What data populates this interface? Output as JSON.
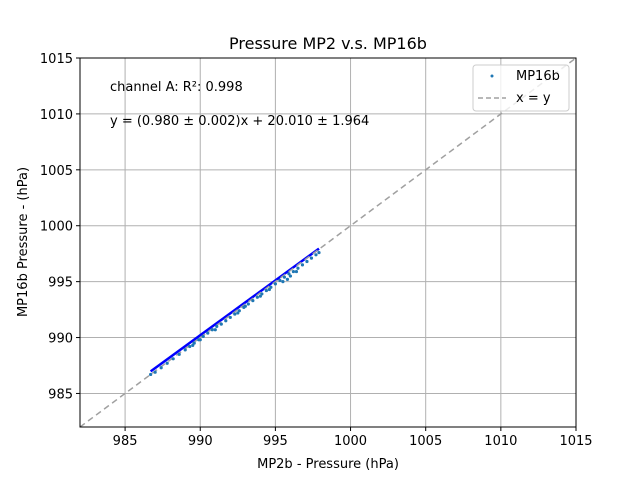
{
  "chart_data": {
    "type": "scatter",
    "title": "Pressure MP2 v.s. MP16b",
    "xlabel": "MP2b - Pressure (hPa)",
    "ylabel": "MP16b Pressure - (hPa)",
    "xlim": [
      982,
      1015
    ],
    "ylim": [
      982,
      1015
    ],
    "xticks": [
      985,
      990,
      995,
      1000,
      1005,
      1010,
      1015
    ],
    "yticks": [
      985,
      990,
      995,
      1000,
      1005,
      1010,
      1015
    ],
    "grid": true,
    "legend_position": "top-right",
    "annotations": [
      "channel A: R²: 0.998",
      "y = (0.980 ± 0.002)x + 20.010 ± 1.964"
    ],
    "series": [
      {
        "name": "MP16b",
        "kind": "scatter",
        "color": "#1f77b4",
        "points": [
          [
            986.7,
            986.7
          ],
          [
            987.0,
            986.9
          ],
          [
            987.4,
            987.3
          ],
          [
            987.8,
            987.7
          ],
          [
            988.2,
            988.1
          ],
          [
            988.6,
            988.5
          ],
          [
            989.0,
            988.9
          ],
          [
            989.3,
            989.2
          ],
          [
            989.6,
            989.5
          ],
          [
            989.9,
            989.8
          ],
          [
            990.2,
            990.1
          ],
          [
            990.5,
            990.4
          ],
          [
            990.8,
            990.7
          ],
          [
            991.1,
            991.0
          ],
          [
            991.4,
            991.2
          ],
          [
            991.7,
            991.5
          ],
          [
            992.0,
            991.8
          ],
          [
            992.3,
            992.1
          ],
          [
            992.6,
            992.4
          ],
          [
            992.9,
            992.7
          ],
          [
            993.2,
            993.0
          ],
          [
            993.5,
            993.3
          ],
          [
            993.8,
            993.6
          ],
          [
            994.1,
            993.9
          ],
          [
            994.4,
            994.2
          ],
          [
            994.7,
            994.5
          ],
          [
            995.0,
            994.8
          ],
          [
            995.3,
            995.1
          ],
          [
            995.6,
            995.4
          ],
          [
            995.9,
            995.7
          ],
          [
            996.2,
            995.9
          ],
          [
            996.5,
            996.2
          ],
          [
            996.8,
            996.5
          ],
          [
            997.1,
            996.8
          ],
          [
            997.4,
            997.1
          ],
          [
            997.7,
            997.4
          ],
          [
            997.9,
            997.6
          ],
          [
            992.5,
            992.2
          ],
          [
            994.0,
            993.7
          ],
          [
            995.8,
            995.2
          ],
          [
            996.0,
            995.5
          ],
          [
            996.4,
            995.9
          ],
          [
            993.0,
            992.8
          ],
          [
            990.0,
            989.8
          ],
          [
            989.5,
            989.3
          ],
          [
            991.0,
            990.7
          ],
          [
            994.6,
            994.3
          ],
          [
            995.5,
            995.0
          ]
        ]
      },
      {
        "name": "fit",
        "kind": "line",
        "color": "#0000ff",
        "slope": 0.98,
        "intercept": 20.01,
        "x_range": [
          986.7,
          997.9
        ]
      },
      {
        "name": "x = y",
        "kind": "line",
        "color": "#a0a0a0",
        "dashed": true,
        "x_range": [
          982,
          1015
        ]
      }
    ]
  }
}
